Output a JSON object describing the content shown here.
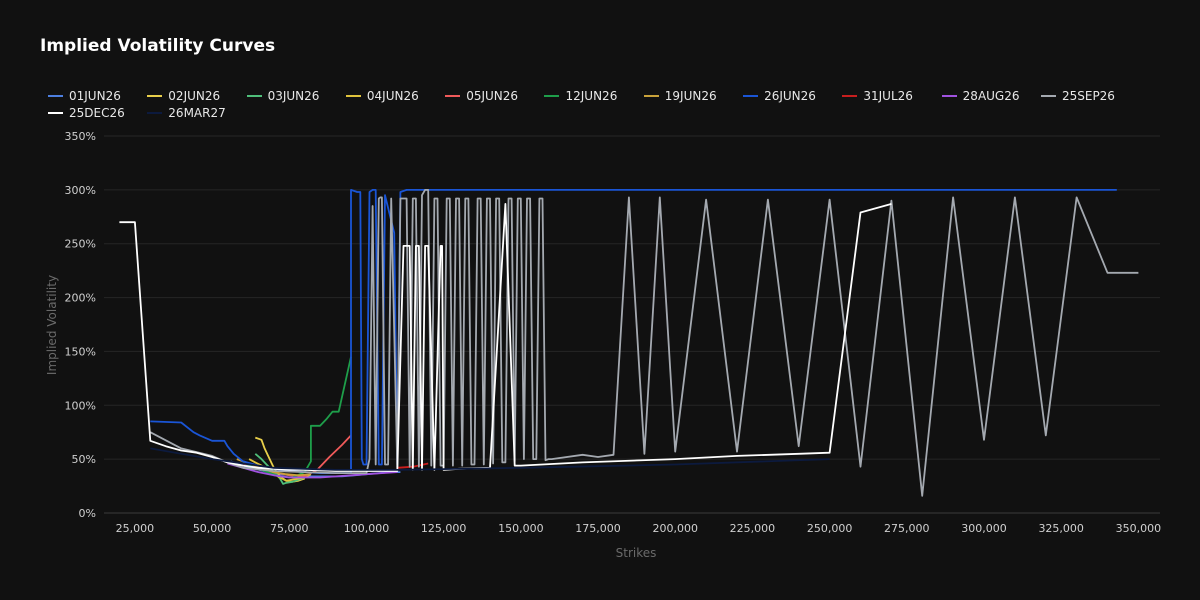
{
  "chart_data": {
    "type": "line",
    "title": "Implied Volatility Curves",
    "xlabel": "Strikes",
    "ylabel": "Implied Volatility",
    "xlim": [
      15000,
      357000
    ],
    "ylim": [
      0,
      3.5
    ],
    "x_ticks": [
      25000,
      50000,
      75000,
      100000,
      125000,
      150000,
      175000,
      200000,
      225000,
      250000,
      275000,
      300000,
      325000,
      350000
    ],
    "x_tick_labels": [
      "25,000",
      "50,000",
      "75,000",
      "100,000",
      "125,000",
      "150,000",
      "175,000",
      "200,000",
      "225,000",
      "250,000",
      "275,000",
      "300,000",
      "325,000",
      "350,000"
    ],
    "y_ticks": [
      0,
      0.5,
      1,
      1.5,
      2,
      2.5,
      3,
      3.5
    ],
    "y_tick_labels": [
      "0%",
      "50%",
      "100%",
      "150%",
      "200%",
      "250%",
      "300%",
      "350%"
    ],
    "grid": true,
    "legend_placement": "top",
    "series": [
      {
        "name": "01JUN26",
        "color": "#4d7fe0",
        "x": [
          56000,
          60000,
          64000,
          68000,
          72000,
          76000,
          80000,
          84000,
          88000,
          92000,
          96000,
          100000,
          104000,
          108000,
          111000
        ],
        "y": [
          0.48,
          0.44,
          0.41,
          0.38,
          0.36,
          0.35,
          0.34,
          0.34,
          0.34,
          0.34,
          0.35,
          0.36,
          0.37,
          0.38,
          0.38
        ]
      },
      {
        "name": "02JUN26",
        "color": "#e8cf4a",
        "x": [
          64000,
          66000,
          67000,
          68000,
          70000,
          72000,
          74000,
          76000,
          78000,
          80000
        ],
        "y": [
          0.7,
          0.68,
          0.6,
          0.54,
          0.42,
          0.34,
          0.3,
          0.29,
          0.3,
          0.32
        ]
      },
      {
        "name": "03JUN26",
        "color": "#4fbf7a",
        "x": [
          64000,
          66000,
          68000,
          70000,
          72000,
          73000,
          74000,
          76000,
          78000,
          80000
        ],
        "y": [
          0.55,
          0.5,
          0.44,
          0.38,
          0.32,
          0.27,
          0.28,
          0.29,
          0.31,
          0.33
        ]
      },
      {
        "name": "04JUN26",
        "color": "#e0c33c",
        "x": [
          62000,
          64000,
          66000,
          68000,
          70000,
          72000,
          74000,
          76000,
          78000,
          80000,
          82000
        ],
        "y": [
          0.5,
          0.47,
          0.44,
          0.4,
          0.36,
          0.33,
          0.3,
          0.31,
          0.32,
          0.33,
          0.36
        ]
      },
      {
        "name": "05JUN26",
        "color": "#f05a5a",
        "x": [
          60000,
          65000,
          70000,
          75000,
          80000,
          84000,
          88000,
          92000,
          95000
        ],
        "y": [
          0.46,
          0.42,
          0.38,
          0.35,
          0.34,
          0.4,
          0.52,
          0.63,
          0.72
        ]
      },
      {
        "name": "12JUN26",
        "color": "#1e9e4a",
        "x": [
          60000,
          64000,
          68000,
          72000,
          76000,
          80000,
          82000,
          82000,
          85000,
          87000,
          89000,
          91000,
          95000
        ],
        "y": [
          0.47,
          0.42,
          0.38,
          0.34,
          0.33,
          0.38,
          0.48,
          0.81,
          0.81,
          0.87,
          0.94,
          0.94,
          1.45
        ]
      },
      {
        "name": "19JUN26",
        "color": "#c9a23a",
        "x": [
          58000,
          62000,
          66000,
          70000,
          74000,
          78000,
          82000
        ],
        "y": [
          0.5,
          0.46,
          0.42,
          0.38,
          0.36,
          0.35,
          0.36
        ]
      },
      {
        "name": "26JUN26",
        "color": "#1a55d6",
        "x": [
          30000,
          40000,
          44000,
          46000,
          50000,
          54000,
          55000,
          57000,
          60000,
          65000,
          70000,
          75000,
          80000,
          85000,
          90000,
          95000,
          95000,
          97000,
          98000,
          98500,
          99000,
          100000,
          101000,
          102000,
          103000,
          104000,
          105000,
          106000,
          109000,
          110000,
          111000,
          113000,
          343000
        ],
        "y": [
          0.85,
          0.84,
          0.75,
          0.72,
          0.67,
          0.67,
          0.62,
          0.55,
          0.48,
          0.44,
          0.41,
          0.39,
          0.38,
          0.37,
          0.37,
          0.37,
          3.0,
          2.98,
          2.98,
          0.5,
          0.45,
          0.45,
          2.98,
          3.0,
          3.0,
          0.45,
          0.45,
          2.95,
          2.6,
          0.45,
          2.98,
          3.0,
          3.0
        ]
      },
      {
        "name": "31JUL26",
        "color": "#c81e1e",
        "x": [
          110000,
          115000,
          120000
        ],
        "y": [
          0.42,
          0.43,
          0.46
        ]
      },
      {
        "name": "28AUG26",
        "color": "#a052e0",
        "x": [
          55000,
          60000,
          65000,
          70000,
          75000,
          80000,
          85000,
          90000,
          95000,
          100000,
          105000,
          110000
        ],
        "y": [
          0.46,
          0.42,
          0.38,
          0.35,
          0.33,
          0.33,
          0.33,
          0.34,
          0.35,
          0.36,
          0.37,
          0.38
        ]
      },
      {
        "name": "25SEP26",
        "color": "#a4a9b0",
        "x": [
          30000,
          40000,
          50000,
          55000,
          60000,
          70000,
          80000,
          90000,
          100000,
          101000,
          102000,
          103000,
          104000,
          104500,
          105000,
          106000,
          107000,
          108000,
          110000,
          111000,
          112000,
          113000,
          114000,
          115000,
          116000,
          117000,
          118000,
          119000,
          120000,
          121000,
          122000,
          123000,
          124000,
          125000,
          126000,
          127000,
          128000,
          129000,
          130000,
          131000,
          132000,
          133000,
          134000,
          135000,
          136000,
          137000,
          138000,
          139000,
          140000,
          141000,
          142000,
          143000,
          144000,
          145000,
          146000,
          147000,
          148000,
          149000,
          150000,
          151000,
          152000,
          153000,
          154000,
          155000,
          156000,
          157000,
          158000,
          159000,
          160000,
          170000,
          175000,
          180000,
          185000,
          190000,
          195000,
          200000,
          210000,
          220000,
          230000,
          240000,
          250000,
          260000,
          270000,
          280000,
          290000,
          300000,
          310000,
          320000,
          330000,
          340000,
          350000
        ],
        "y": [
          0.75,
          0.6,
          0.53,
          0.47,
          0.42,
          0.39,
          0.38,
          0.37,
          0.37,
          0.5,
          2.85,
          0.45,
          2.92,
          2.93,
          2.93,
          0.45,
          0.45,
          2.92,
          0.42,
          2.92,
          2.92,
          2.92,
          0.43,
          2.92,
          2.92,
          0.43,
          2.95,
          3.0,
          3.0,
          0.44,
          2.92,
          2.92,
          0.44,
          0.44,
          2.92,
          2.92,
          0.44,
          2.92,
          2.92,
          0.44,
          2.92,
          2.92,
          0.45,
          0.45,
          2.92,
          2.92,
          0.45,
          2.92,
          2.92,
          0.46,
          2.92,
          2.92,
          0.47,
          0.47,
          2.92,
          2.92,
          0.48,
          2.92,
          2.92,
          0.5,
          2.92,
          2.92,
          0.5,
          0.5,
          2.92,
          2.92,
          0.49,
          0.5,
          0.5,
          0.54,
          0.52,
          0.54,
          2.93,
          0.55,
          2.93,
          0.57,
          2.91,
          0.57,
          2.91,
          0.62,
          2.91,
          0.43,
          2.9,
          0.16,
          2.93,
          0.68,
          2.93,
          0.72,
          2.93,
          2.23,
          2.23
        ]
      },
      {
        "name": "25DEC26",
        "color": "#ffffff",
        "x": [
          20000,
          25000,
          30000,
          35000,
          40000,
          45000,
          50000,
          55000,
          60000,
          65000,
          70000,
          75000,
          80000,
          90000,
          100000,
          105000,
          110000,
          112000,
          114000,
          115000,
          116000,
          117000,
          118000,
          119000,
          120000,
          122000,
          124000,
          124500,
          125000,
          130000,
          140000,
          145000,
          148000,
          150000,
          170000,
          200000,
          220000,
          240000,
          250000,
          260000,
          270000
        ],
        "y": [
          2.7,
          2.7,
          0.67,
          0.62,
          0.58,
          0.56,
          0.52,
          0.47,
          0.44,
          0.42,
          0.41,
          0.4,
          0.4,
          0.39,
          0.39,
          0.39,
          0.39,
          2.48,
          2.48,
          0.4,
          2.48,
          2.48,
          0.4,
          2.48,
          2.48,
          0.4,
          2.48,
          2.48,
          0.4,
          0.41,
          0.42,
          2.87,
          0.44,
          0.44,
          0.47,
          0.5,
          0.53,
          0.55,
          0.56,
          2.79,
          2.87
        ]
      },
      {
        "name": "26MAR27",
        "color": "#0c1a3e",
        "x": [
          30000,
          50000,
          70000,
          90000,
          110000,
          150000,
          200000,
          250000
        ],
        "y": [
          0.6,
          0.5,
          0.42,
          0.4,
          0.4,
          0.42,
          0.45,
          0.5
        ]
      }
    ]
  }
}
